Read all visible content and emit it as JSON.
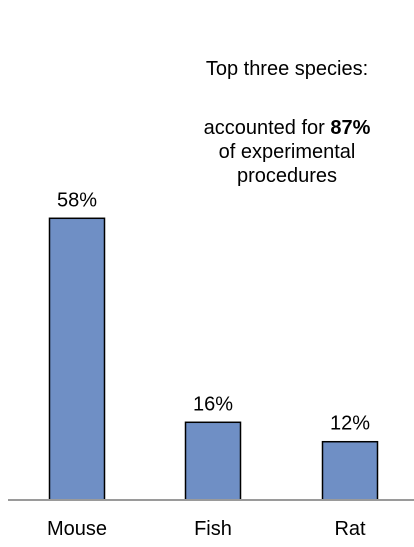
{
  "chart_data": {
    "type": "bar",
    "categories": [
      "Mouse",
      "Fish",
      "Rat"
    ],
    "values": [
      58,
      16,
      12
    ],
    "value_labels": [
      "58%",
      "16%",
      "12%"
    ],
    "title": "",
    "xlabel": "",
    "ylabel": "",
    "ylim": [
      0,
      70
    ],
    "grid": false,
    "bar_color": "#6f8fc5",
    "bar_outline_color": "#000000",
    "axis_color": "#9a9a9a",
    "annotation": {
      "heading": "Top three species:",
      "lead": "accounted for",
      "highlight": "87%",
      "tail": "of experimental procedures"
    }
  }
}
